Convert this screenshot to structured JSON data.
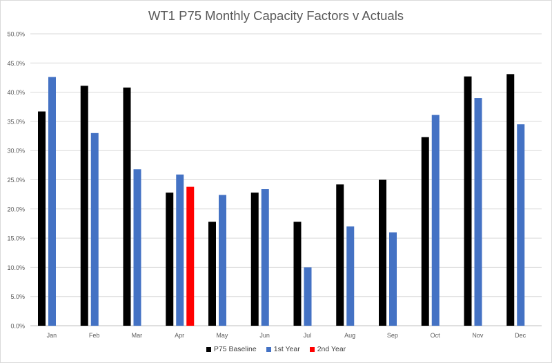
{
  "chart_data": {
    "type": "bar",
    "title": "WT1 P75 Monthly Capacity Factors v Actuals",
    "xlabel": "",
    "ylabel": "",
    "categories": [
      "Jan",
      "Feb",
      "Mar",
      "Apr",
      "May",
      "Jun",
      "Jul",
      "Aug",
      "Sep",
      "Oct",
      "Nov",
      "Dec"
    ],
    "ylim": [
      0,
      0.5
    ],
    "yticks": [
      0,
      0.05,
      0.1,
      0.15,
      0.2,
      0.25,
      0.3,
      0.35,
      0.4,
      0.45,
      0.5
    ],
    "ytick_labels": [
      "0.0%",
      "5.0%",
      "10.0%",
      "15.0%",
      "20.0%",
      "25.0%",
      "30.0%",
      "35.0%",
      "40.0%",
      "45.0%",
      "50.0%"
    ],
    "grid": true,
    "legend_position": "bottom",
    "series": [
      {
        "name": "P75 Baseline",
        "color": "#000000",
        "values": [
          0.367,
          0.411,
          0.408,
          0.228,
          0.178,
          0.228,
          0.178,
          0.242,
          0.25,
          0.323,
          0.427,
          0.431
        ]
      },
      {
        "name": "1st Year",
        "color": "#4472c4",
        "values": [
          0.426,
          0.33,
          0.268,
          0.259,
          0.224,
          0.234,
          0.1,
          0.17,
          0.16,
          0.361,
          0.39,
          0.345
        ]
      },
      {
        "name": "2nd Year",
        "color": "#ff0000",
        "values": [
          null,
          null,
          null,
          0.238,
          null,
          null,
          null,
          null,
          null,
          null,
          null,
          null
        ]
      }
    ]
  }
}
